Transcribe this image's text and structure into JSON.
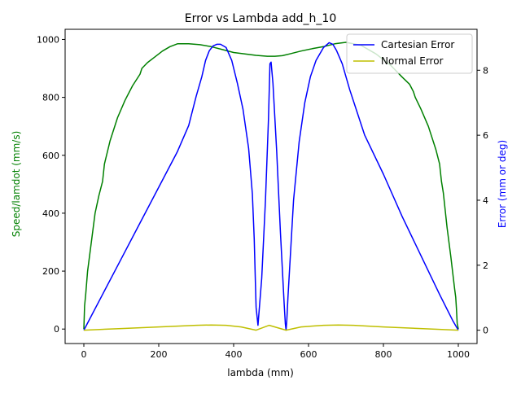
{
  "chart_data": {
    "type": "line",
    "title": "Error vs Lambda add_h_10",
    "xlabel": "lambda (mm)",
    "ylabel_left": "Speed/lamdot (mm/s)",
    "ylabel_right": "Error (mm or deg)",
    "xlim": [
      -50,
      1050
    ],
    "ylim_left": [
      -50,
      1035
    ],
    "ylim_right": [
      -0.41,
      9.26
    ],
    "x_ticks": [
      0,
      200,
      400,
      600,
      800,
      1000
    ],
    "y_left_ticks": [
      0,
      200,
      400,
      600,
      800,
      1000
    ],
    "y_right_ticks": [
      0,
      2,
      4,
      6,
      8
    ],
    "grid": false,
    "legend_position": "upper right",
    "colors": {
      "speed": "#008000",
      "cartesian": "#0000ff",
      "normal": "#bfbf00"
    },
    "series": [
      {
        "axis": "left",
        "color": "#008000",
        "x": [
          0,
          2,
          5,
          10,
          20,
          30,
          40,
          50,
          55,
          70,
          90,
          110,
          130,
          150,
          155,
          170,
          190,
          210,
          230,
          250,
          280,
          310,
          340,
          370,
          400,
          430,
          460,
          490,
          510,
          530,
          550,
          580,
          610,
          640,
          670,
          700,
          740,
          780,
          820,
          850,
          870,
          880,
          885,
          900,
          920,
          940,
          950,
          955,
          960,
          970,
          980,
          990,
          993,
          995,
          997,
          1000
        ],
        "y": [
          0,
          80,
          120,
          200,
          300,
          400,
          460,
          510,
          570,
          650,
          730,
          790,
          840,
          880,
          900,
          920,
          940,
          960,
          975,
          985,
          985,
          982,
          975,
          965,
          955,
          950,
          945,
          942,
          942,
          944,
          950,
          960,
          968,
          975,
          985,
          990,
          980,
          950,
          910,
          870,
          845,
          820,
          800,
          760,
          700,
          620,
          570,
          510,
          470,
          350,
          250,
          140,
          110,
          70,
          20,
          0
        ]
      },
      {
        "name": "Cartesian Error",
        "axis": "right",
        "color": "#0000ff",
        "x": [
          0,
          50,
          100,
          150,
          200,
          250,
          280,
          300,
          315,
          325,
          335,
          345,
          355,
          365,
          380,
          395,
          410,
          425,
          440,
          450,
          455,
          458,
          460,
          465,
          475,
          485,
          493,
          497,
          500,
          505,
          515,
          525,
          535,
          538,
          540,
          542,
          545,
          550,
          560,
          575,
          590,
          605,
          620,
          640,
          655,
          665,
          675,
          690,
          710,
          750,
          800,
          850,
          900,
          950,
          985,
          1000
        ],
        "y": [
          0,
          1.1,
          2.2,
          3.3,
          4.4,
          5.5,
          6.3,
          7.2,
          7.8,
          8.3,
          8.6,
          8.75,
          8.8,
          8.8,
          8.7,
          8.3,
          7.6,
          6.8,
          5.6,
          4.2,
          2.8,
          1.5,
          0.7,
          0.15,
          1.6,
          4.0,
          6.5,
          8.2,
          8.25,
          7.6,
          5.5,
          3.0,
          0.8,
          0.2,
          0,
          0.3,
          1.0,
          2.0,
          4.0,
          5.8,
          7.0,
          7.8,
          8.3,
          8.7,
          8.85,
          8.8,
          8.6,
          8.2,
          7.4,
          6.0,
          4.8,
          3.5,
          2.3,
          1.1,
          0.3,
          0
        ]
      },
      {
        "name": "Normal Error",
        "axis": "right",
        "color": "#bfbf00",
        "x": [
          0,
          100,
          200,
          300,
          340,
          380,
          420,
          460,
          495,
          540,
          580,
          640,
          680,
          720,
          800,
          900,
          1000
        ],
        "y": [
          0,
          0.05,
          0.1,
          0.15,
          0.16,
          0.15,
          0.1,
          0.0,
          0.15,
          0.0,
          0.1,
          0.15,
          0.16,
          0.15,
          0.1,
          0.05,
          0
        ]
      }
    ]
  }
}
